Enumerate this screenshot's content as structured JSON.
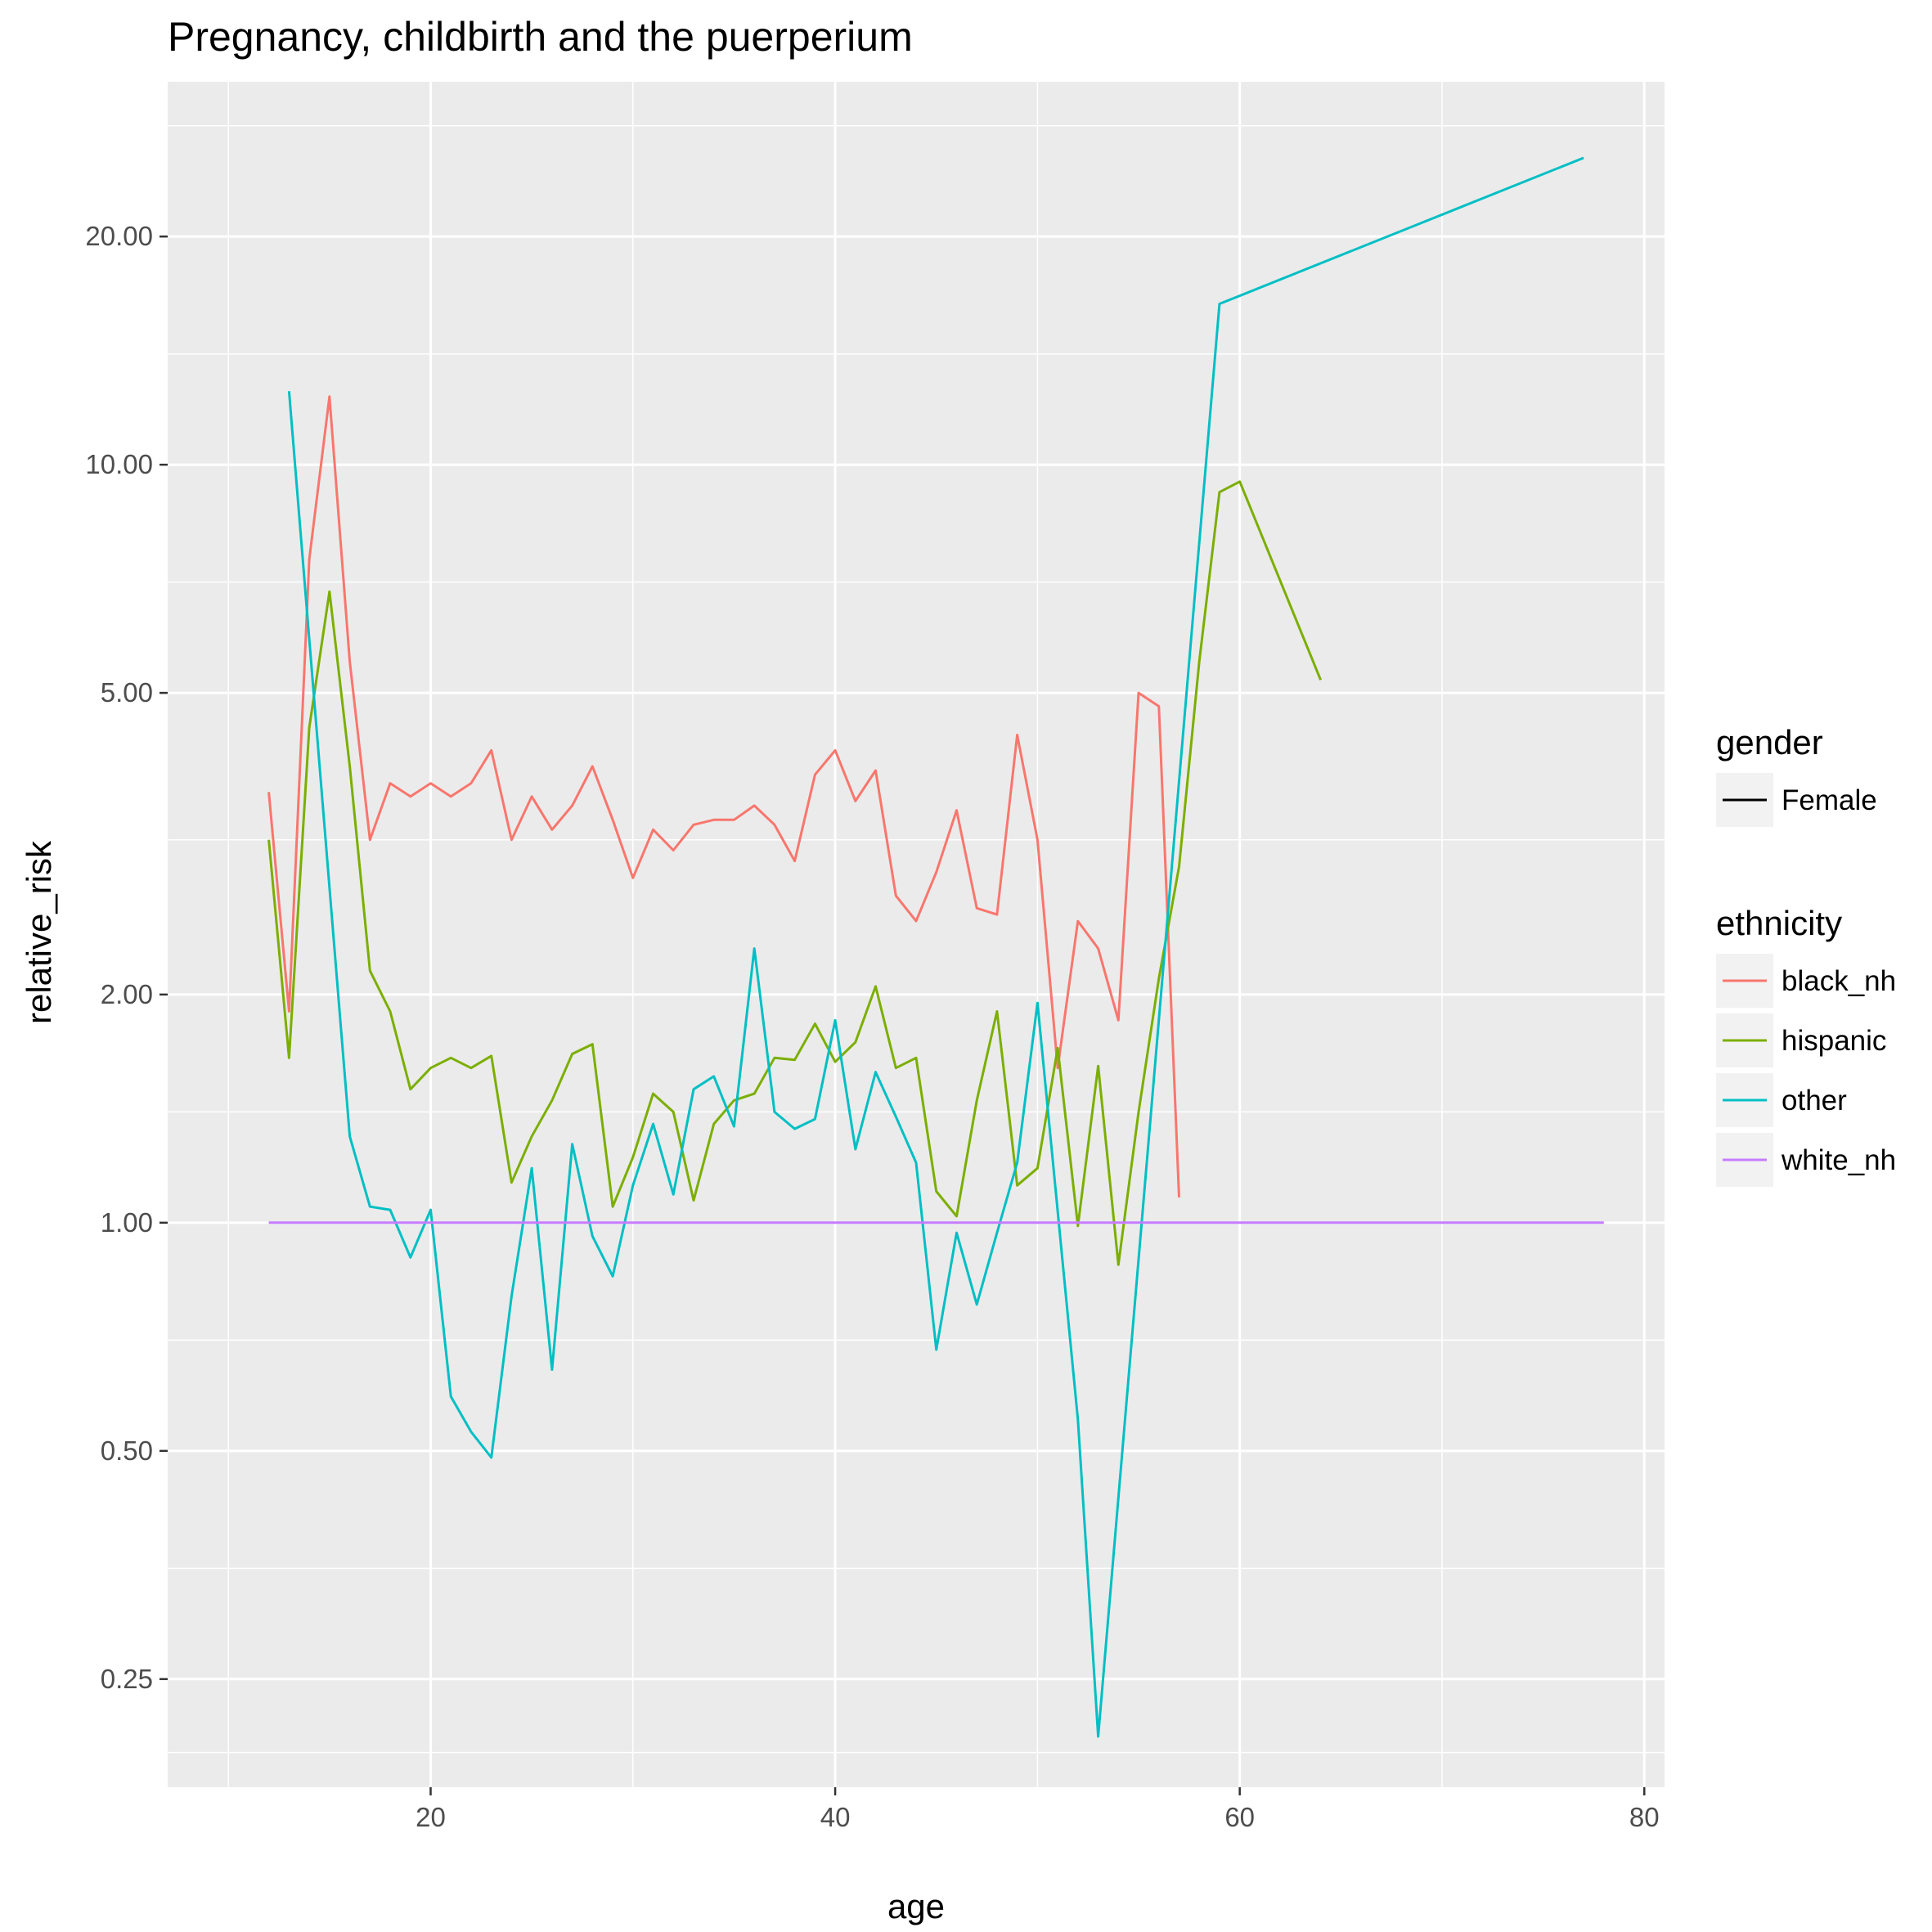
{
  "chart_data": {
    "type": "line",
    "title": "Pregnancy, childbirth and the puerperium",
    "xlabel": "age",
    "ylabel": "relative_risk",
    "xlim": [
      7,
      81
    ],
    "ylim": [
      0.18,
      32
    ],
    "yscale": "log",
    "x_ticks": [
      20,
      40,
      60,
      80
    ],
    "x_tick_labels": [
      "20",
      "40",
      "60",
      "80"
    ],
    "x_minor_ticks": [
      10,
      30,
      50,
      70
    ],
    "y_ticks": [
      0.25,
      0.5,
      1,
      2,
      5,
      10,
      20
    ],
    "y_tick_labels": [
      "0.25",
      "0.50",
      "1.00",
      "2.00",
      "5.00",
      "10.00",
      "20.00"
    ],
    "y_minor_ticks": [
      0.2,
      0.35,
      0.7,
      1.4,
      3.2,
      7,
      14,
      28
    ],
    "grid": true,
    "legend_position": "right",
    "legend": {
      "gender": {
        "title": "gender",
        "entries": [
          {
            "label": "Female",
            "color": "#000000"
          }
        ]
      },
      "ethnicity": {
        "title": "ethnicity",
        "entries": [
          {
            "label": "black_nh",
            "color": "#F8766D"
          },
          {
            "label": "hispanic",
            "color": "#7CAE00"
          },
          {
            "label": "other",
            "color": "#00BFC4"
          },
          {
            "label": "white_nh",
            "color": "#C77CFF"
          }
        ]
      }
    },
    "series": [
      {
        "name": "black_nh",
        "color": "#F8766D",
        "x": [
          12,
          13,
          14,
          15,
          16,
          17,
          18,
          19,
          20,
          21,
          22,
          23,
          24,
          25,
          26,
          27,
          28,
          29,
          30,
          31,
          32,
          33,
          34,
          35,
          36,
          37,
          38,
          39,
          40,
          41,
          42,
          43,
          44,
          45,
          46,
          47,
          48,
          49,
          50,
          51,
          52,
          53,
          54,
          55,
          56,
          57
        ],
        "y": [
          3.7,
          1.9,
          7.5,
          12.3,
          5.5,
          3.2,
          3.8,
          3.65,
          3.8,
          3.65,
          3.8,
          4.2,
          3.2,
          3.65,
          3.3,
          3.55,
          4.0,
          3.4,
          2.85,
          3.3,
          3.1,
          3.35,
          3.4,
          3.4,
          3.55,
          3.35,
          3.0,
          3.9,
          4.2,
          3.6,
          3.95,
          2.7,
          2.5,
          2.9,
          3.5,
          2.6,
          2.55,
          4.4,
          3.2,
          1.6,
          2.5,
          2.3,
          1.85,
          5.0,
          4.8,
          1.08
        ]
      },
      {
        "name": "hispanic",
        "color": "#7CAE00",
        "x": [
          12,
          13,
          14,
          15,
          16,
          17,
          18,
          19,
          20,
          21,
          22,
          23,
          24,
          25,
          26,
          27,
          28,
          29,
          30,
          31,
          32,
          33,
          34,
          35,
          36,
          37,
          38,
          39,
          40,
          41,
          42,
          43,
          44,
          45,
          46,
          47,
          48,
          49,
          50,
          51,
          52,
          53,
          54,
          55,
          56,
          57,
          58,
          59,
          60,
          64
        ],
        "y": [
          3.2,
          1.65,
          4.5,
          6.8,
          4.0,
          2.15,
          1.9,
          1.5,
          1.6,
          1.65,
          1.6,
          1.66,
          1.13,
          1.3,
          1.45,
          1.67,
          1.72,
          1.05,
          1.22,
          1.48,
          1.4,
          1.07,
          1.35,
          1.45,
          1.48,
          1.65,
          1.64,
          1.83,
          1.63,
          1.73,
          2.05,
          1.6,
          1.65,
          1.1,
          1.02,
          1.45,
          1.9,
          1.12,
          1.18,
          1.7,
          0.99,
          1.61,
          0.88,
          1.4,
          2.1,
          2.95,
          5.5,
          9.2,
          9.5,
          5.2
        ]
      },
      {
        "name": "other",
        "color": "#00BFC4",
        "x": [
          13,
          16,
          17,
          18,
          19,
          20,
          21,
          22,
          23,
          24,
          25,
          26,
          27,
          28,
          29,
          30,
          31,
          32,
          33,
          34,
          35,
          36,
          37,
          38,
          39,
          40,
          41,
          42,
          43,
          44,
          45,
          46,
          47,
          48,
          49,
          50,
          52,
          53,
          59,
          77
        ],
        "y": [
          12.5,
          1.3,
          1.05,
          1.04,
          0.9,
          1.04,
          0.59,
          0.53,
          0.49,
          0.8,
          1.18,
          0.64,
          1.27,
          0.96,
          0.85,
          1.12,
          1.35,
          1.09,
          1.5,
          1.56,
          1.34,
          2.3,
          1.4,
          1.33,
          1.37,
          1.85,
          1.25,
          1.58,
          1.38,
          1.2,
          0.68,
          0.97,
          0.78,
          0.97,
          1.2,
          1.95,
          0.55,
          0.21,
          16.3,
          25.4
        ]
      },
      {
        "name": "white_nh",
        "color": "#C77CFF",
        "x": [
          12,
          78
        ],
        "y": [
          1.0,
          1.0
        ]
      }
    ]
  }
}
